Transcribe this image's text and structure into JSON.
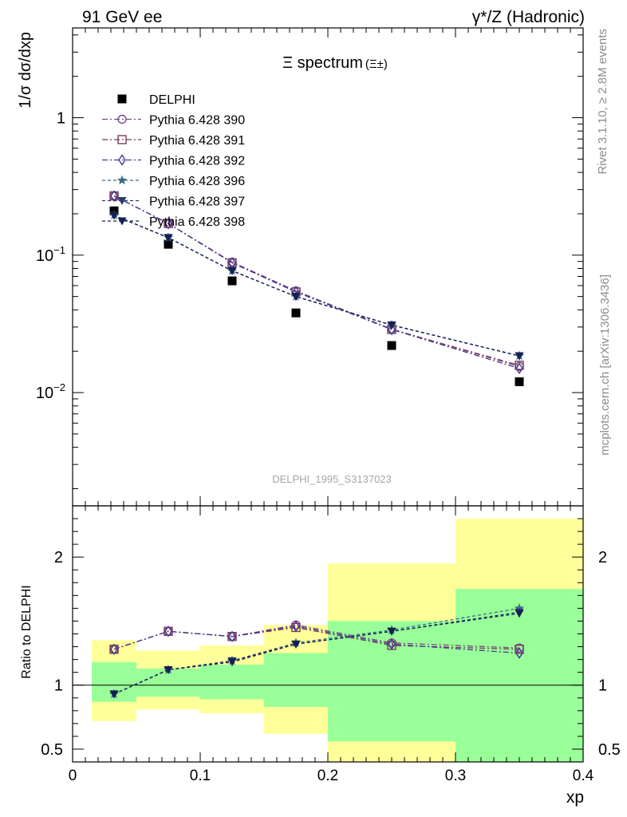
{
  "header": {
    "left": "91 GeV ee",
    "right": "γ*/Z (Hadronic)"
  },
  "side_labels": {
    "rivet": "Rivet 3.1.10, ≥ 2.8M events",
    "mcplots": "mcplots.cern.ch [arXiv:1306.3436]"
  },
  "chart_data": [
    {
      "type": "scatter",
      "title": "Ξ spectrum",
      "title_suffix": "(Ξ±)",
      "watermark": "DELPHI_1995_S3137023",
      "ylabel": "1/σ dσ/dxp",
      "xlabel": "xp",
      "xlim": [
        0,
        0.4
      ],
      "ylim": [
        0.0015,
        4.5
      ],
      "yscale": "log",
      "legend_position": "top-left",
      "x_ticks": [
        "0",
        "0.1",
        "0.2",
        "0.3",
        "0.4"
      ],
      "y_ticks": [
        "10−2",
        "10−1",
        "1"
      ],
      "x": [
        0.0325,
        0.075,
        0.125,
        0.175,
        0.25,
        0.35
      ],
      "series": [
        {
          "name": "DELPHI",
          "marker": "square-filled",
          "dash": "none",
          "color": "#000000",
          "values": [
            0.21,
            0.12,
            0.065,
            0.038,
            0.022,
            0.012
          ]
        },
        {
          "name": "Pythia 6.428 390",
          "marker": "circle-open",
          "dash": "dashdot",
          "color": "#7a4b8c",
          "values": [
            0.27,
            0.17,
            0.089,
            0.055,
            0.029,
            0.0155
          ]
        },
        {
          "name": "Pythia 6.428 391",
          "marker": "square-open",
          "dash": "dashdot",
          "color": "#7a3b5a",
          "values": [
            0.27,
            0.17,
            0.088,
            0.054,
            0.0288,
            0.0158
          ]
        },
        {
          "name": "Pythia 6.428 392",
          "marker": "diamond-open",
          "dash": "dashdot",
          "color": "#4a3590",
          "values": [
            0.27,
            0.17,
            0.088,
            0.054,
            0.0288,
            0.015
          ]
        },
        {
          "name": "Pythia 6.428 396",
          "marker": "star",
          "dash": "dash",
          "color": "#3c6b86",
          "values": [
            0.195,
            0.134,
            0.077,
            0.05,
            0.031,
            0.0185
          ]
        },
        {
          "name": "Pythia 6.428 397",
          "marker": "triangle-down",
          "dash": "dash",
          "color": "#283a70",
          "values": [
            0.195,
            0.134,
            0.077,
            0.05,
            0.031,
            0.0185
          ]
        },
        {
          "name": "Pythia 6.428 398",
          "marker": "triangle-down",
          "dash": "dash",
          "color": "#152052",
          "values": [
            0.195,
            0.134,
            0.077,
            0.05,
            0.031,
            0.0185
          ]
        }
      ]
    },
    {
      "type": "scatter",
      "ylabel": "Ratio to DELPHI",
      "xlabel": "xp",
      "xlim": [
        0,
        0.4
      ],
      "ylim": [
        0.4,
        2.4
      ],
      "reference_line": 1,
      "y_ticks": [
        "0.5",
        "1",
        "2"
      ],
      "bands": [
        {
          "x_low": 0.015,
          "x_high": 0.05,
          "green": [
            0.87,
            1.18
          ],
          "yellow": [
            0.72,
            1.35
          ]
        },
        {
          "x_low": 0.05,
          "x_high": 0.1,
          "green": [
            0.91,
            1.13
          ],
          "yellow": [
            0.81,
            1.27
          ]
        },
        {
          "x_low": 0.1,
          "x_high": 0.15,
          "green": [
            0.89,
            1.16
          ],
          "yellow": [
            0.78,
            1.31
          ]
        },
        {
          "x_low": 0.15,
          "x_high": 0.2,
          "green": [
            0.83,
            1.25
          ],
          "yellow": [
            0.62,
            1.47
          ]
        },
        {
          "x_low": 0.2,
          "x_high": 0.3,
          "green": [
            0.56,
            1.5
          ],
          "yellow": [
            0.4,
            1.95
          ]
        },
        {
          "x_low": 0.3,
          "x_high": 0.4,
          "green": [
            0.4,
            1.75
          ],
          "yellow": [
            0.4,
            2.3
          ]
        }
      ],
      "x": [
        0.0325,
        0.075,
        0.125,
        0.175,
        0.25,
        0.35
      ],
      "series": [
        {
          "name": "Pythia 6.428 390",
          "values": [
            1.28,
            1.42,
            1.38,
            1.47,
            1.33,
            1.29
          ]
        },
        {
          "name": "Pythia 6.428 391",
          "values": [
            1.28,
            1.42,
            1.38,
            1.45,
            1.31,
            1.28
          ]
        },
        {
          "name": "Pythia 6.428 392",
          "values": [
            1.28,
            1.42,
            1.38,
            1.46,
            1.32,
            1.25
          ]
        },
        {
          "name": "Pythia 6.428 396",
          "values": [
            0.93,
            1.12,
            1.19,
            1.33,
            1.43,
            1.6
          ]
        },
        {
          "name": "Pythia 6.428 397",
          "values": [
            0.93,
            1.12,
            1.19,
            1.32,
            1.42,
            1.57
          ]
        },
        {
          "name": "Pythia 6.428 398",
          "values": [
            0.93,
            1.12,
            1.18,
            1.32,
            1.42,
            1.56
          ]
        }
      ]
    }
  ]
}
